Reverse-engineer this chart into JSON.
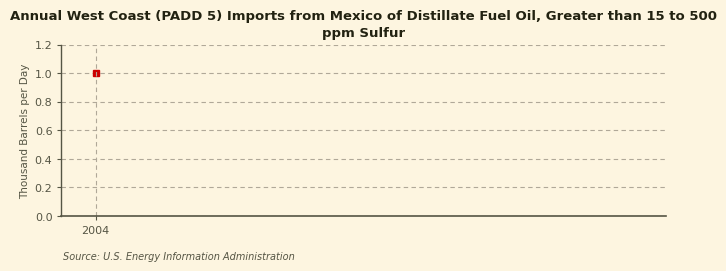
{
  "title": "Annual West Coast (PADD 5) Imports from Mexico of Distillate Fuel Oil, Greater than 15 to 500\nppm Sulfur",
  "ylabel": "Thousand Barrels per Day",
  "source_text": "Source: U.S. Energy Information Administration",
  "background_color": "#fdf5e0",
  "data_x": [
    2004
  ],
  "data_y": [
    1.0
  ],
  "point_color": "#cc0000",
  "xlim": [
    2003.4,
    2014.0
  ],
  "ylim": [
    0.0,
    1.2
  ],
  "yticks": [
    0.0,
    0.2,
    0.4,
    0.6,
    0.8,
    1.0,
    1.2
  ],
  "xticks": [
    2004
  ],
  "grid_color": "#b0a898",
  "spine_color": "#555544",
  "title_fontsize": 9.5,
  "ylabel_fontsize": 7.5,
  "tick_fontsize": 8,
  "source_fontsize": 7,
  "source_color": "#555544"
}
